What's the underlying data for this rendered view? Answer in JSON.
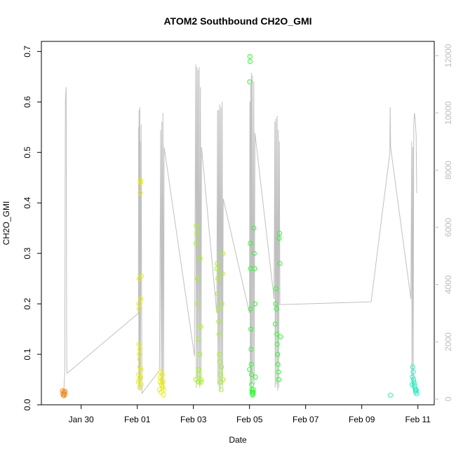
{
  "chart_data": {
    "type": "scatter",
    "title": "ATOM2 Southbound CH2O_GMI",
    "xlabel": "Date",
    "ylabel": "CH2O_GMI",
    "xlim": [
      "2017-01-28T14:00",
      "2017-02-11T14:00"
    ],
    "ylim": [
      0,
      0.72
    ],
    "y_ticks": [
      "0.0",
      "0.1",
      "0.2",
      "0.3",
      "0.4",
      "0.5",
      "0.6",
      "0.7"
    ],
    "x_ticks": [
      {
        "label": "Jan 30",
        "date": "2017-01-30T00:00"
      },
      {
        "label": "Feb 01",
        "date": "2017-02-01T00:00"
      },
      {
        "label": "Feb 03",
        "date": "2017-02-03T00:00"
      },
      {
        "label": "Feb 05",
        "date": "2017-02-05T00:00"
      },
      {
        "label": "Feb 07",
        "date": "2017-02-07T00:00"
      },
      {
        "label": "Feb 09",
        "date": "2017-02-09T00:00"
      },
      {
        "label": "Feb 11",
        "date": "2017-02-11T00:00"
      }
    ],
    "y2lim": [
      -200,
      12500
    ],
    "y2_ticks": [
      "0",
      "2000",
      "4000",
      "6000",
      "8000",
      "10000",
      "12000"
    ],
    "grid": false,
    "secondary_line_color": "#c0c0c0",
    "series": [
      {
        "color": "#f28e1c",
        "points": [
          [
            "2017-01-29T08:00",
            0.028
          ],
          [
            "2017-01-29T08:20",
            0.022
          ],
          [
            "2017-01-29T08:40",
            0.019
          ],
          [
            "2017-01-29T09:00",
            0.026
          ],
          [
            "2017-01-29T09:20",
            0.018
          ],
          [
            "2017-01-29T09:40",
            0.024
          ],
          [
            "2017-01-29T10:00",
            0.021
          ],
          [
            "2017-01-29T10:20",
            0.027
          ]
        ]
      },
      {
        "color": "#e8ef00",
        "points": [
          [
            "2017-02-01T01:00",
            0.045
          ],
          [
            "2017-02-01T01:10",
            0.06
          ],
          [
            "2017-02-01T01:20",
            0.12
          ],
          [
            "2017-02-01T01:30",
            0.19
          ],
          [
            "2017-02-01T01:40",
            0.25
          ],
          [
            "2017-02-01T01:50",
            0.052
          ],
          [
            "2017-02-01T02:00",
            0.035
          ],
          [
            "2017-02-01T02:10",
            0.09
          ],
          [
            "2017-02-01T02:20",
            0.11
          ],
          [
            "2017-02-01T02:30",
            0.42
          ],
          [
            "2017-02-01T02:40",
            0.445
          ],
          [
            "2017-02-01T02:50",
            0.44
          ],
          [
            "2017-02-01T03:00",
            0.21
          ],
          [
            "2017-02-01T03:10",
            0.07
          ],
          [
            "2017-02-01T03:20",
            0.04
          ],
          [
            "2017-02-01T01:15",
            0.2
          ],
          [
            "2017-02-01T01:45",
            0.1
          ],
          [
            "2017-02-01T02:15",
            0.075
          ],
          [
            "2017-02-01T02:45",
            0.055
          ],
          [
            "2017-02-01T03:30",
            0.255
          ],
          [
            "2017-02-01T19:00",
            0.03
          ],
          [
            "2017-02-01T19:20",
            0.045
          ],
          [
            "2017-02-01T19:40",
            0.055
          ],
          [
            "2017-02-01T20:00",
            0.065
          ],
          [
            "2017-02-01T20:20",
            0.025
          ],
          [
            "2017-02-01T20:40",
            0.04
          ],
          [
            "2017-02-01T21:00",
            0.05
          ],
          [
            "2017-02-01T21:20",
            0.06
          ],
          [
            "2017-02-01T21:40",
            0.035
          ],
          [
            "2017-02-01T22:00",
            0.045
          ],
          [
            "2017-02-01T22:20",
            0.02
          ],
          [
            "2017-02-01T22:40",
            0.03
          ]
        ]
      },
      {
        "color": "#9cff00",
        "points": [
          [
            "2017-02-03T02:00",
            0.05
          ],
          [
            "2017-02-03T02:20",
            0.32
          ],
          [
            "2017-02-03T02:40",
            0.355
          ],
          [
            "2017-02-03T03:00",
            0.34
          ],
          [
            "2017-02-03T03:20",
            0.25
          ],
          [
            "2017-02-03T03:40",
            0.2
          ],
          [
            "2017-02-03T04:00",
            0.13
          ],
          [
            "2017-02-03T04:20",
            0.07
          ],
          [
            "2017-02-03T04:40",
            0.045
          ],
          [
            "2017-02-03T05:00",
            0.06
          ],
          [
            "2017-02-03T05:20",
            0.1
          ],
          [
            "2017-02-03T05:40",
            0.29
          ],
          [
            "2017-02-03T06:00",
            0.155
          ],
          [
            "2017-02-03T06:20",
            0.05
          ],
          [
            "2017-02-03T06:40",
            0.045
          ],
          [
            "2017-02-03T20:00",
            0.27
          ],
          [
            "2017-02-03T20:20",
            0.28
          ],
          [
            "2017-02-03T20:40",
            0.22
          ],
          [
            "2017-02-03T21:00",
            0.25
          ],
          [
            "2017-02-03T21:20",
            0.19
          ],
          [
            "2017-02-03T21:40",
            0.165
          ],
          [
            "2017-02-03T22:00",
            0.14
          ],
          [
            "2017-02-03T22:20",
            0.1
          ],
          [
            "2017-02-03T22:40",
            0.085
          ],
          [
            "2017-02-03T23:00",
            0.06
          ],
          [
            "2017-02-03T23:20",
            0.045
          ],
          [
            "2017-02-03T23:40",
            0.03
          ],
          [
            "2017-02-04T00:00",
            0.075
          ],
          [
            "2017-02-04T00:20",
            0.2
          ],
          [
            "2017-02-04T00:40",
            0.26
          ],
          [
            "2017-02-04T01:00",
            0.3
          ],
          [
            "2017-02-04T01:20",
            0.05
          ]
        ]
      },
      {
        "color": "#22ff22",
        "points": [
          [
            "2017-02-05T00:00",
            0.07
          ],
          [
            "2017-02-05T00:10",
            0.64
          ],
          [
            "2017-02-05T00:20",
            0.69
          ],
          [
            "2017-02-05T00:30",
            0.68
          ],
          [
            "2017-02-05T00:40",
            0.32
          ],
          [
            "2017-02-05T00:50",
            0.27
          ],
          [
            "2017-02-05T01:00",
            0.19
          ],
          [
            "2017-02-05T01:10",
            0.15
          ],
          [
            "2017-02-05T01:20",
            0.11
          ],
          [
            "2017-02-05T01:30",
            0.08
          ],
          [
            "2017-02-05T01:40",
            0.06
          ],
          [
            "2017-02-05T01:50",
            0.04
          ],
          [
            "2017-02-05T02:00",
            0.03
          ],
          [
            "2017-02-05T02:10",
            0.025
          ],
          [
            "2017-02-05T02:20",
            0.022
          ],
          [
            "2017-02-05T02:40",
            0.02
          ],
          [
            "2017-02-05T03:00",
            0.025
          ],
          [
            "2017-02-05T03:20",
            0.03
          ],
          [
            "2017-02-05T03:40",
            0.35
          ],
          [
            "2017-02-05T04:00",
            0.3
          ],
          [
            "2017-02-05T04:20",
            0.27
          ],
          [
            "2017-02-05T04:40",
            0.2
          ],
          [
            "2017-02-05T05:00",
            0.055
          ],
          [
            "2017-02-05T22:00",
            0.16
          ],
          [
            "2017-02-05T22:20",
            0.2
          ],
          [
            "2017-02-05T22:40",
            0.23
          ],
          [
            "2017-02-05T23:00",
            0.19
          ],
          [
            "2017-02-05T23:20",
            0.14
          ],
          [
            "2017-02-05T23:40",
            0.12
          ],
          [
            "2017-02-06T00:00",
            0.1
          ],
          [
            "2017-02-06T00:20",
            0.08
          ],
          [
            "2017-02-06T00:40",
            0.065
          ],
          [
            "2017-02-06T01:00",
            0.05
          ],
          [
            "2017-02-06T01:20",
            0.33
          ],
          [
            "2017-02-06T01:40",
            0.34
          ],
          [
            "2017-02-06T02:00",
            0.28
          ],
          [
            "2017-02-06T02:20",
            0.135
          ]
        ]
      },
      {
        "color": "#22f0a0",
        "points": [
          [
            "2017-02-10T00:30",
            0.019
          ]
        ]
      },
      {
        "color": "#22eebb",
        "points": [
          [
            "2017-02-10T19:00",
            0.04
          ],
          [
            "2017-02-10T19:20",
            0.055
          ],
          [
            "2017-02-10T19:40",
            0.075
          ],
          [
            "2017-02-10T20:00",
            0.065
          ],
          [
            "2017-02-10T20:20",
            0.05
          ],
          [
            "2017-02-10T20:40",
            0.045
          ],
          [
            "2017-02-10T21:00",
            0.04
          ],
          [
            "2017-02-10T21:20",
            0.035
          ],
          [
            "2017-02-10T21:40",
            0.03
          ],
          [
            "2017-02-10T22:00",
            0.025
          ],
          [
            "2017-02-10T22:20",
            0.03
          ],
          [
            "2017-02-10T22:40",
            0.028
          ],
          [
            "2017-02-10T23:00",
            0.022
          ]
        ]
      }
    ],
    "secondary_line": [
      [
        "2017-01-29T09:00",
        200
      ],
      [
        "2017-01-29T10:00",
        900
      ],
      [
        "2017-01-29T10:30",
        10400
      ],
      [
        "2017-01-29T11:00",
        10800
      ],
      [
        "2017-01-29T11:10",
        10900
      ],
      [
        "2017-01-29T11:40",
        1200
      ],
      [
        "2017-01-29T12:00",
        900
      ],
      [
        "2017-02-01T01:00",
        3000
      ],
      [
        "2017-02-01T01:10",
        9500
      ],
      [
        "2017-02-01T01:20",
        300
      ],
      [
        "2017-02-01T01:30",
        10100
      ],
      [
        "2017-02-01T01:40",
        500
      ],
      [
        "2017-02-01T01:50",
        9900
      ],
      [
        "2017-02-01T02:00",
        600
      ],
      [
        "2017-02-01T02:10",
        10200
      ],
      [
        "2017-02-01T02:20",
        400
      ],
      [
        "2017-02-01T02:30",
        9000
      ],
      [
        "2017-02-01T02:40",
        300
      ],
      [
        "2017-02-01T03:00",
        5000
      ],
      [
        "2017-02-01T03:20",
        9600
      ],
      [
        "2017-02-01T04:00",
        200
      ],
      [
        "2017-02-01T19:00",
        1000
      ],
      [
        "2017-02-01T20:00",
        9400
      ],
      [
        "2017-02-01T20:30",
        300
      ],
      [
        "2017-02-01T21:00",
        9700
      ],
      [
        "2017-02-01T21:30",
        500
      ],
      [
        "2017-02-01T22:00",
        10000
      ],
      [
        "2017-02-01T22:30",
        300
      ],
      [
        "2017-02-01T23:00",
        8800
      ],
      [
        "2017-02-03T01:00",
        1500
      ],
      [
        "2017-02-03T02:00",
        11700
      ],
      [
        "2017-02-03T02:30",
        400
      ],
      [
        "2017-02-03T03:00",
        11600
      ],
      [
        "2017-02-03T03:30",
        600
      ],
      [
        "2017-02-03T04:00",
        11500
      ],
      [
        "2017-02-03T04:30",
        500
      ],
      [
        "2017-02-03T05:00",
        11600
      ],
      [
        "2017-02-03T05:30",
        400
      ],
      [
        "2017-02-03T06:00",
        10900
      ],
      [
        "2017-02-03T06:30",
        500
      ],
      [
        "2017-02-03T07:00",
        8800
      ],
      [
        "2017-02-03T20:00",
        3000
      ],
      [
        "2017-02-03T20:40",
        10100
      ],
      [
        "2017-02-03T21:00",
        500
      ],
      [
        "2017-02-03T21:40",
        10100
      ],
      [
        "2017-02-03T22:00",
        400
      ],
      [
        "2017-02-03T22:40",
        10300
      ],
      [
        "2017-02-03T23:00",
        300
      ],
      [
        "2017-02-03T23:40",
        10200
      ],
      [
        "2017-02-04T00:00",
        500
      ],
      [
        "2017-02-04T00:40",
        10400
      ],
      [
        "2017-02-04T01:00",
        400
      ],
      [
        "2017-02-04T01:30",
        7000
      ],
      [
        "2017-02-05T00:00",
        3000
      ],
      [
        "2017-02-05T00:20",
        10400
      ],
      [
        "2017-02-05T00:40",
        300
      ],
      [
        "2017-02-05T01:00",
        11000
      ],
      [
        "2017-02-05T01:20",
        500
      ],
      [
        "2017-02-05T01:40",
        11400
      ],
      [
        "2017-02-05T02:00",
        300
      ],
      [
        "2017-02-05T02:30",
        11300
      ],
      [
        "2017-02-05T03:00",
        600
      ],
      [
        "2017-02-05T03:40",
        11100
      ],
      [
        "2017-02-05T04:00",
        500
      ],
      [
        "2017-02-05T04:40",
        9300
      ],
      [
        "2017-02-05T21:00",
        3500
      ],
      [
        "2017-02-05T21:40",
        9700
      ],
      [
        "2017-02-05T22:00",
        400
      ],
      [
        "2017-02-05T22:40",
        9800
      ],
      [
        "2017-02-05T23:00",
        500
      ],
      [
        "2017-02-05T23:40",
        9900
      ],
      [
        "2017-02-06T00:00",
        300
      ],
      [
        "2017-02-06T00:40",
        9400
      ],
      [
        "2017-02-06T01:00",
        400
      ],
      [
        "2017-02-06T01:30",
        9000
      ],
      [
        "2017-02-06T02:00",
        3300
      ],
      [
        "2017-02-09T08:00",
        3400
      ],
      [
        "2017-02-10T00:00",
        8600
      ],
      [
        "2017-02-10T00:20",
        10200
      ],
      [
        "2017-02-10T00:40",
        8800
      ],
      [
        "2017-02-10T18:00",
        3500
      ],
      [
        "2017-02-10T18:40",
        9000
      ],
      [
        "2017-02-10T19:00",
        400
      ],
      [
        "2017-02-10T19:40",
        8800
      ],
      [
        "2017-02-10T20:00",
        300
      ],
      [
        "2017-02-10T20:30",
        9600
      ],
      [
        "2017-02-10T21:00",
        10000
      ],
      [
        "2017-02-10T21:40",
        9800
      ],
      [
        "2017-02-10T22:30",
        9200
      ],
      [
        "2017-02-10T23:00",
        7200
      ]
    ]
  }
}
